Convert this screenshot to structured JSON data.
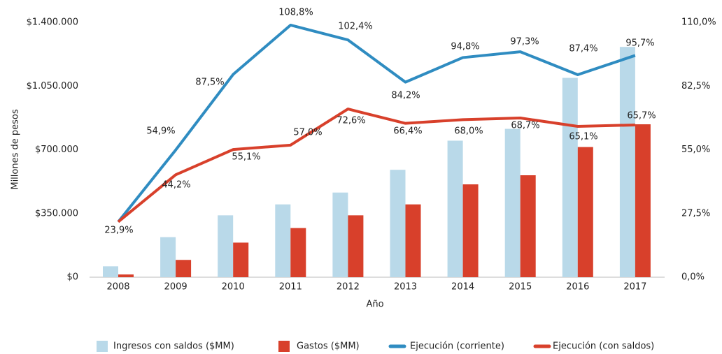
{
  "chart_data": {
    "type": "bar_line",
    "y_label": "Millones de pesos",
    "x_label": "Año",
    "categories": [
      "2008",
      "2009",
      "2010",
      "2011",
      "2012",
      "2013",
      "2014",
      "2015",
      "2016",
      "2017"
    ],
    "series": [
      {
        "name": "Ingresos con saldos ($MM)",
        "type": "bar",
        "color": "#b9d9e9",
        "values": [
          60000,
          220000,
          340000,
          400000,
          465000,
          590000,
          750000,
          815000,
          1095000,
          1265000
        ]
      },
      {
        "name": "Gastos ($MM)",
        "type": "bar",
        "color": "#d8402b",
        "values": [
          15000,
          95000,
          190000,
          270000,
          340000,
          400000,
          510000,
          560000,
          715000,
          840000
        ]
      },
      {
        "name": "Ejecución (corriente)",
        "type": "line",
        "axis": "y2",
        "color": "#2f8cc1",
        "values": [
          23.9,
          54.9,
          87.5,
          108.8,
          102.4,
          84.2,
          94.8,
          97.3,
          87.4,
          95.7
        ],
        "value_labels": [
          null,
          "54,9%",
          "87,5%",
          "108,8%",
          "102,4%",
          "84,2%",
          "94,8%",
          "97,3%",
          "87,4%",
          "95,7%"
        ]
      },
      {
        "name": "Ejecución (con saldos)",
        "type": "line",
        "axis": "y2",
        "color": "#d8402b",
        "values": [
          23.9,
          44.2,
          55.1,
          57.0,
          72.6,
          66.4,
          68.0,
          68.7,
          65.1,
          65.7
        ],
        "value_labels": [
          "23,9%",
          "44,2%",
          "55,1%",
          "57,0%",
          "72,6%",
          "66,4%",
          "68,0%",
          "68,7%",
          "65,1%",
          "65,7%"
        ]
      }
    ],
    "ylim": [
      0,
      1400000
    ],
    "yticks": [
      {
        "value": 0,
        "label": "$0"
      },
      {
        "value": 350000,
        "label": "$350.000"
      },
      {
        "value": 700000,
        "label": "$700.000"
      },
      {
        "value": 1050000,
        "label": "$1.050.000"
      },
      {
        "value": 1400000,
        "label": "$1.400.000"
      }
    ],
    "y2lim": [
      0,
      110
    ],
    "y2ticks": [
      {
        "value": 0,
        "label": "0,0%"
      },
      {
        "value": 27.5,
        "label": "27,5%"
      },
      {
        "value": 55,
        "label": "55,0%"
      },
      {
        "value": 82.5,
        "label": "82,5%"
      },
      {
        "value": 110,
        "label": "110,0%"
      }
    ],
    "legend": "bottom"
  }
}
